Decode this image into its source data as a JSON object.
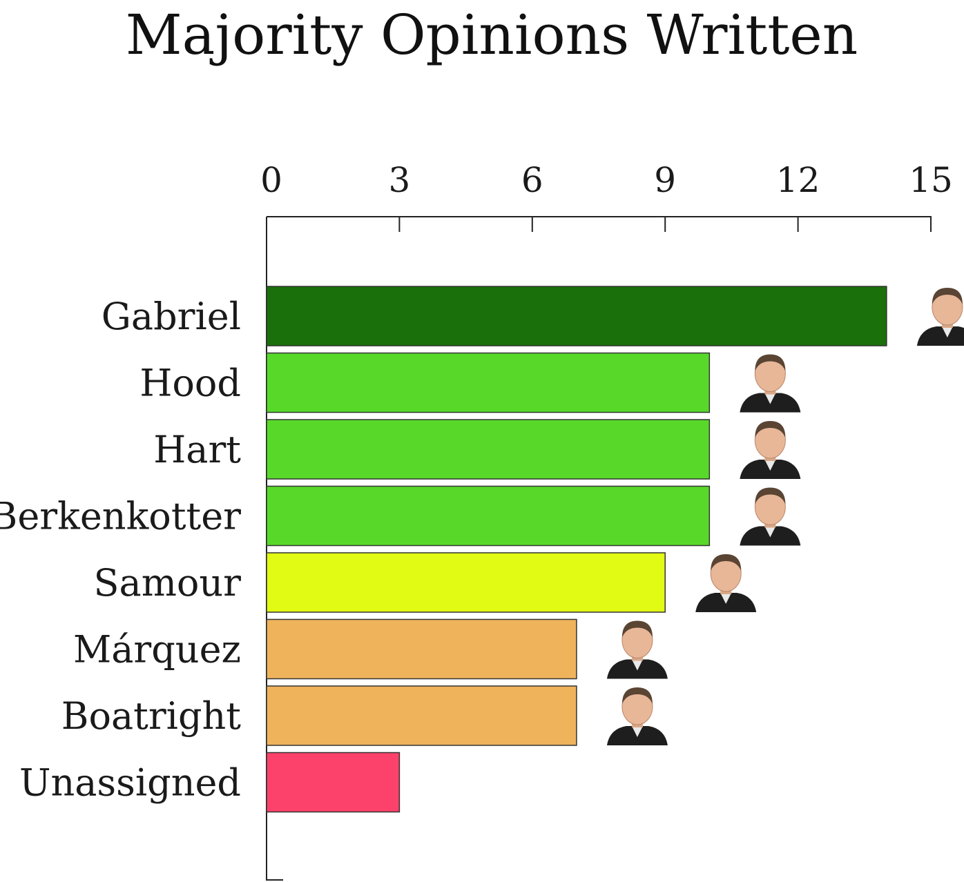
{
  "chart_data": {
    "type": "bar",
    "orientation": "horizontal",
    "title": "Majority Opinions Written",
    "xlabel": "",
    "ylabel": "",
    "xlim": [
      0,
      15
    ],
    "ticks": [
      0,
      3,
      6,
      9,
      12,
      15
    ],
    "tick_position": "top",
    "grid": false,
    "legend": "none",
    "categories": [
      "Gabriel",
      "Hood",
      "Hart",
      "Berkenkotter",
      "Samour",
      "Márquez",
      "Boatright",
      "Unassigned"
    ],
    "values": [
      14,
      10,
      10,
      10,
      9,
      7,
      7,
      3
    ],
    "colors": [
      "#1a700a",
      "#58d929",
      "#58d929",
      "#58d929",
      "#e1fb14",
      "#efb35c",
      "#efb35c",
      "#fc426b"
    ],
    "portraits": [
      "person-icon",
      "person-icon",
      "person-icon",
      "person-icon",
      "person-icon",
      "person-icon",
      "person-icon",
      null
    ]
  }
}
